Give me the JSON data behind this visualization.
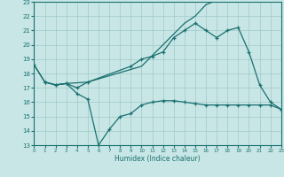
{
  "xlabel": "Humidex (Indice chaleur)",
  "xlim": [
    0,
    23
  ],
  "ylim": [
    13,
    23
  ],
  "yticks": [
    13,
    14,
    15,
    16,
    17,
    18,
    19,
    20,
    21,
    22,
    23
  ],
  "xticks": [
    0,
    1,
    2,
    3,
    4,
    5,
    6,
    7,
    8,
    9,
    10,
    11,
    12,
    13,
    14,
    15,
    16,
    17,
    18,
    19,
    20,
    21,
    22,
    23
  ],
  "bg_color": "#c8e6e6",
  "grid_color": "#a0c8c8",
  "line_color": "#1a7070",
  "line1_x": [
    0,
    1,
    2,
    3,
    5,
    10,
    14,
    15,
    16,
    17,
    18,
    19,
    20,
    21,
    22
  ],
  "line1_y": [
    18.6,
    17.4,
    17.2,
    17.3,
    17.4,
    18.5,
    21.5,
    22.0,
    22.8,
    23.1,
    23.2,
    23.3,
    23.3,
    23.3,
    23.3
  ],
  "line2_x": [
    0,
    1,
    2,
    3,
    4,
    5,
    9,
    10,
    11,
    12,
    13,
    14,
    15,
    16,
    17,
    18,
    19,
    20,
    21,
    22,
    23
  ],
  "line2_y": [
    18.6,
    17.4,
    17.2,
    17.3,
    17.0,
    17.4,
    18.5,
    19.0,
    19.2,
    19.5,
    20.5,
    21.0,
    21.5,
    21.0,
    20.5,
    21.0,
    21.2,
    19.5,
    17.2,
    16.0,
    15.5
  ],
  "line3_x": [
    1,
    2,
    3,
    4,
    5,
    6,
    7,
    8,
    9,
    10,
    11,
    12,
    13,
    14,
    15,
    16,
    17,
    18,
    19,
    20,
    21,
    22,
    23
  ],
  "line3_y": [
    17.4,
    17.2,
    17.3,
    16.6,
    16.2,
    13.0,
    14.1,
    15.0,
    15.2,
    15.8,
    16.0,
    16.1,
    16.1,
    16.0,
    15.9,
    15.8,
    15.8,
    15.8,
    15.8,
    15.8,
    15.8,
    15.8,
    15.5
  ]
}
